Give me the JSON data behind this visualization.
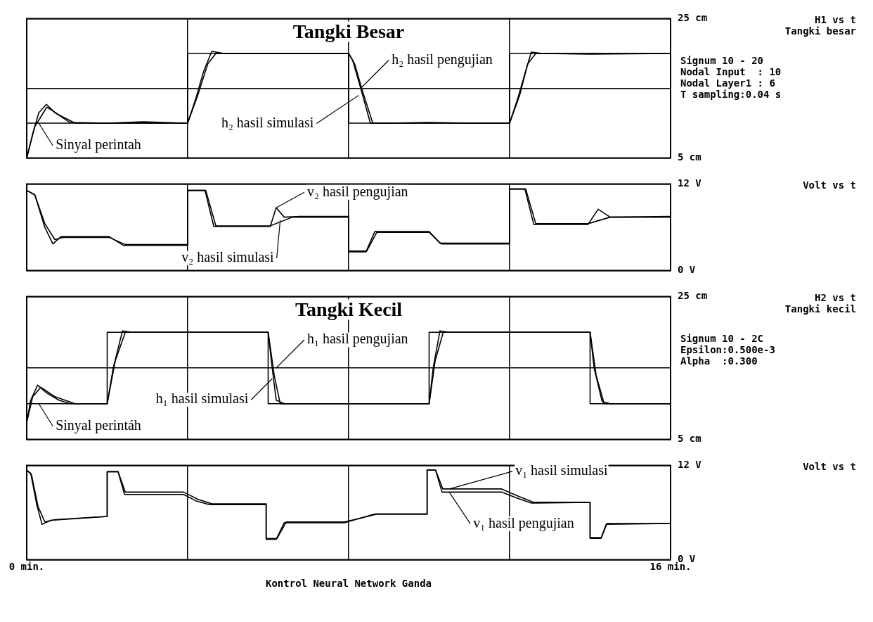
{
  "chart_data": [
    {
      "type": "line",
      "title": "Tangki Besar",
      "ylabel": "H1 vs t",
      "xlim": [
        0,
        16
      ],
      "xticks": [
        {
          "value": 0,
          "label": null
        },
        {
          "value": 4,
          "label": null
        },
        {
          "value": 8,
          "label": null
        },
        {
          "value": 12,
          "label": null
        },
        {
          "value": 16,
          "label": null
        }
      ],
      "ylim": [
        5,
        25
      ],
      "yticks": [
        {
          "value": 5,
          "label": "5 cm"
        },
        {
          "value": 15,
          "label": null
        },
        {
          "value": 25,
          "label": "25 cm"
        }
      ],
      "grid": true,
      "tick_labels": "y",
      "annotations": [
        "Tangki besar",
        "Signum 10 - 20",
        "Nodal Input  : 10",
        "Nodal Layer1 : 6",
        "T sampling:0.04 s",
        {
          "text": "h₂ hasil pengujian",
          "x": 8.3,
          "y": 15
        },
        {
          "text": "h₂ hasil simulasi",
          "x": 8.25,
          "y": 14
        },
        {
          "text": "Sinyal perintah",
          "x": 0.3,
          "y": 10
        }
      ],
      "series": [
        {
          "color": "#000000",
          "x": [
            0,
            4,
            4,
            8,
            8,
            12,
            12,
            16
          ],
          "values": [
            10,
            10,
            20,
            20,
            10,
            10,
            20,
            20
          ]
        },
        {
          "color": "#000000",
          "x": [
            0,
            0.15,
            0.3,
            0.49,
            0.7,
            1.08,
            2,
            2.9,
            4,
            4.2,
            4.4,
            4.6,
            4.9,
            6,
            7,
            8,
            8.1,
            8.3,
            8.54,
            9,
            10,
            11,
            12,
            12.2,
            12.4,
            12.54,
            12.8,
            14,
            16
          ],
          "values": [
            5,
            8.5,
            11.5,
            12.7,
            11.5,
            10.1,
            10,
            10.2,
            10,
            13.5,
            17.5,
            20.3,
            20,
            20,
            20,
            20,
            19,
            15,
            10,
            10,
            10.1,
            10,
            10,
            13.5,
            17.5,
            20.2,
            20,
            19.9,
            20
          ]
        },
        {
          "color": "#000000",
          "x": [
            0,
            0.2,
            0.5,
            0.8,
            1.2,
            4,
            4.25,
            4.5,
            4.7,
            8,
            8.15,
            8.35,
            8.6,
            12,
            12.25,
            12.45,
            12.65,
            16
          ],
          "values": [
            5,
            9.5,
            12.3,
            11.2,
            10,
            10,
            14,
            18.5,
            20,
            20,
            18.5,
            14.5,
            10,
            10,
            14,
            18.5,
            20,
            20
          ]
        }
      ]
    },
    {
      "type": "line",
      "ylabel": "Volt vs t",
      "xlim": [
        0,
        16
      ],
      "xticks": [
        {
          "value": 0,
          "label": null
        },
        {
          "value": 4,
          "label": null
        },
        {
          "value": 8,
          "label": null
        },
        {
          "value": 12,
          "label": null
        },
        {
          "value": 16,
          "label": null
        }
      ],
      "ylim": [
        0,
        12
      ],
      "yticks": [
        {
          "value": 0,
          "label": "0 V"
        },
        {
          "value": 12,
          "label": "12 V"
        }
      ],
      "grid": true,
      "tick_labels": "y",
      "annotations": [
        {
          "text": "v₂ hasil pengujian",
          "x": 6.2,
          "y": 8.7
        },
        {
          "text": "v₂ hasil simulasi",
          "x": 6.3,
          "y": 7.0
        }
      ],
      "series": [
        {
          "color": "#000000",
          "x": [
            0,
            0.2,
            0.45,
            0.65,
            0.85,
            2.05,
            2.4,
            4,
            4,
            4.43,
            4.65,
            4.8,
            6.05,
            6.2,
            6.4,
            6.8,
            8,
            8,
            8.43,
            8.65,
            10,
            10.27,
            12,
            12,
            12.38,
            12.6,
            13.95,
            14.2,
            14.5,
            16
          ],
          "values": [
            11.1,
            10.5,
            6,
            3.7,
            4.7,
            4.7,
            3.5,
            3.5,
            11.1,
            11.1,
            6.1,
            6.1,
            6.1,
            8.7,
            7.4,
            7.5,
            7.5,
            2.6,
            2.6,
            5.4,
            5.4,
            3.8,
            3.8,
            11.3,
            11.3,
            6.4,
            6.4,
            8.5,
            7.4,
            7.5
          ]
        },
        {
          "color": "#000000",
          "x": [
            0,
            0.2,
            0.45,
            0.7,
            0.9,
            2.05,
            2.45,
            4,
            4,
            4.45,
            4.7,
            6.05,
            6.6,
            8,
            8,
            8.45,
            8.7,
            10,
            10.3,
            12,
            12,
            12.4,
            12.65,
            13.95,
            14.5,
            16
          ],
          "values": [
            11.1,
            10.5,
            6.5,
            4.3,
            4.6,
            4.6,
            3.6,
            3.6,
            11.1,
            11.1,
            6.2,
            6.2,
            7.4,
            7.4,
            2.7,
            2.7,
            5.3,
            5.3,
            3.7,
            3.7,
            11.3,
            11.3,
            6.5,
            6.5,
            7.4,
            7.4
          ]
        }
      ]
    },
    {
      "type": "line",
      "title": "Tangki Kecil",
      "ylabel": "H2 vs t",
      "xlim": [
        0,
        16
      ],
      "xticks": [
        {
          "value": 0,
          "label": null
        },
        {
          "value": 4,
          "label": null
        },
        {
          "value": 8,
          "label": null
        },
        {
          "value": 12,
          "label": null
        },
        {
          "value": 16,
          "label": null
        }
      ],
      "ylim": [
        5,
        25
      ],
      "yticks": [
        {
          "value": 5,
          "label": "5 cm"
        },
        {
          "value": 15,
          "label": null
        },
        {
          "value": 25,
          "label": "25 cm"
        }
      ],
      "grid": true,
      "tick_labels": "y",
      "annotations": [
        "Tangki kecil",
        "Signum 10 - 2C",
        "Epsilon:0.500e-3",
        "Alpha  :0.300",
        {
          "text": "h₁ hasil pengujian",
          "x": 6.2,
          "y": 15
        },
        {
          "text": "h₁ hasil simulasi",
          "x": 6.1,
          "y": 13.5
        },
        {
          "text": "Sinyal perintáh",
          "x": 0.3,
          "y": 10
        }
      ],
      "series": [
        {
          "color": "#000000",
          "x": [
            0,
            2,
            2,
            6,
            6,
            10,
            10,
            14,
            14,
            16
          ],
          "values": [
            10,
            10,
            20,
            20,
            10,
            10,
            20,
            20,
            10,
            10
          ]
        },
        {
          "color": "#000000",
          "x": [
            0,
            0.1,
            0.27,
            0.5,
            0.8,
            1.08,
            2,
            2.15,
            2.38,
            2.6,
            6,
            6.1,
            6.2,
            6.4,
            10,
            10.1,
            10.27,
            10.5,
            14,
            14.1,
            14.3,
            14.5,
            16
          ],
          "values": [
            7.4,
            10.5,
            12.6,
            11.5,
            10.5,
            10,
            10,
            15,
            20.2,
            20,
            20,
            15,
            10.5,
            10,
            10,
            15,
            20.2,
            20,
            20,
            15,
            10.3,
            10,
            10
          ]
        },
        {
          "color": "#000000",
          "x": [
            0,
            0.15,
            0.35,
            0.7,
            1.2,
            2,
            2.2,
            2.45,
            6,
            6.15,
            6.3,
            10,
            10.15,
            10.35,
            14,
            14.15,
            14.35,
            16
          ],
          "values": [
            7.4,
            11,
            12.3,
            11,
            10,
            10,
            16,
            20,
            20,
            14,
            10,
            10,
            16,
            20,
            20,
            14,
            10,
            10
          ]
        }
      ]
    },
    {
      "type": "line",
      "ylabel": "Volt vs t",
      "xlabel": "Kontrol Neural Network Ganda",
      "xlim": [
        0,
        16
      ],
      "xticks": [
        {
          "value": 0,
          "label": "0 min."
        },
        {
          "value": 4,
          "label": null
        },
        {
          "value": 8,
          "label": null
        },
        {
          "value": 12,
          "label": null
        },
        {
          "value": 16,
          "label": "16 min."
        }
      ],
      "ylim": [
        0,
        12
      ],
      "yticks": [
        {
          "value": 0,
          "label": "0 V"
        },
        {
          "value": 12,
          "label": "12 V"
        }
      ],
      "grid": true,
      "annotations": [
        {
          "text": "v₁ hasil simulasi",
          "x": 10.5,
          "y": 9.0
        },
        {
          "text": "v₁ hasil pengujian",
          "x": 10.5,
          "y": 8.6
        }
      ],
      "series": [
        {
          "color": "#000000",
          "x": [
            0,
            0.1,
            0.25,
            0.38,
            0.6,
            2,
            2,
            2.27,
            2.43,
            3.9,
            4.2,
            4.54,
            5.95,
            5.95,
            6.2,
            6.4,
            7.9,
            8.65,
            9.95,
            9.95,
            10.16,
            10.32,
            11.8,
            12.2,
            12.54,
            14,
            14,
            14.27,
            14.4,
            16
          ],
          "values": [
            11.4,
            11,
            7,
            4.5,
            5,
            5.5,
            11.2,
            11.2,
            8.3,
            8.3,
            7.5,
            7,
            7,
            2.6,
            2.6,
            4.7,
            4.7,
            5.8,
            5.8,
            11.4,
            11.4,
            8.6,
            8.6,
            7.8,
            7.2,
            7.3,
            2.7,
            2.7,
            4.5,
            4.6
          ]
        },
        {
          "color": "#000000",
          "x": [
            0,
            0.12,
            0.28,
            0.45,
            0.7,
            2,
            2,
            2.27,
            2.45,
            3.9,
            4.25,
            4.6,
            5.95,
            5.95,
            6.22,
            6.45,
            7.9,
            8.7,
            9.95,
            9.95,
            10.16,
            10.34,
            11.8,
            12.25,
            12.6,
            14,
            14,
            14.28,
            14.42,
            16
          ],
          "values": [
            11.4,
            10.8,
            6.8,
            4.8,
            5.1,
            5.5,
            11.2,
            11.2,
            8.6,
            8.6,
            7.7,
            7.1,
            7.1,
            2.7,
            2.7,
            4.8,
            4.8,
            5.8,
            5.8,
            11.4,
            11.4,
            9.0,
            9.0,
            8.0,
            7.3,
            7.3,
            2.8,
            2.8,
            4.6,
            4.6
          ]
        }
      ]
    }
  ]
}
